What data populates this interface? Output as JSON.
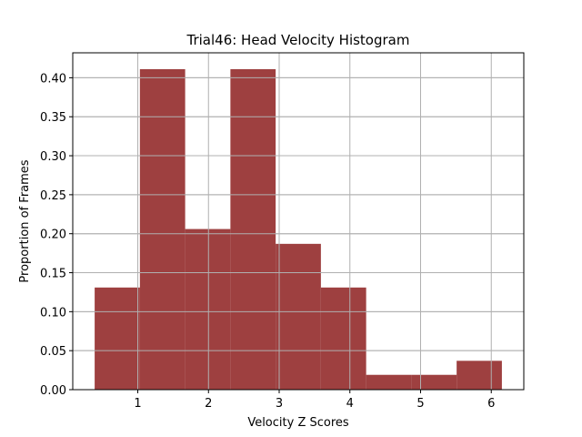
{
  "chart_data": {
    "type": "bar",
    "title": "Trial46: Head Velocity Histogram",
    "xlabel": "Velocity Z Scores",
    "ylabel": "Proportion of Frames",
    "bin_edges": [
      0.39,
      1.03,
      1.67,
      2.31,
      2.95,
      3.59,
      4.23,
      4.87,
      5.51,
      6.15
    ],
    "values": [
      0.131,
      0.411,
      0.206,
      0.411,
      0.187,
      0.131,
      0.019,
      0.019,
      0.037
    ],
    "xlim": [
      0.08,
      6.46
    ],
    "ylim": [
      0,
      0.432
    ],
    "xticks": [
      1,
      2,
      3,
      4,
      5,
      6
    ],
    "xtick_labels": [
      "1",
      "2",
      "3",
      "4",
      "5",
      "6"
    ],
    "yticks": [
      0,
      0.05,
      0.1,
      0.15,
      0.2,
      0.25,
      0.3,
      0.35,
      0.4
    ],
    "ytick_labels": [
      "0.00",
      "0.05",
      "0.10",
      "0.15",
      "0.20",
      "0.25",
      "0.30",
      "0.35",
      "0.40"
    ],
    "grid": true,
    "bar_color": "#9e4040",
    "grid_color": "#b0b0b0"
  }
}
